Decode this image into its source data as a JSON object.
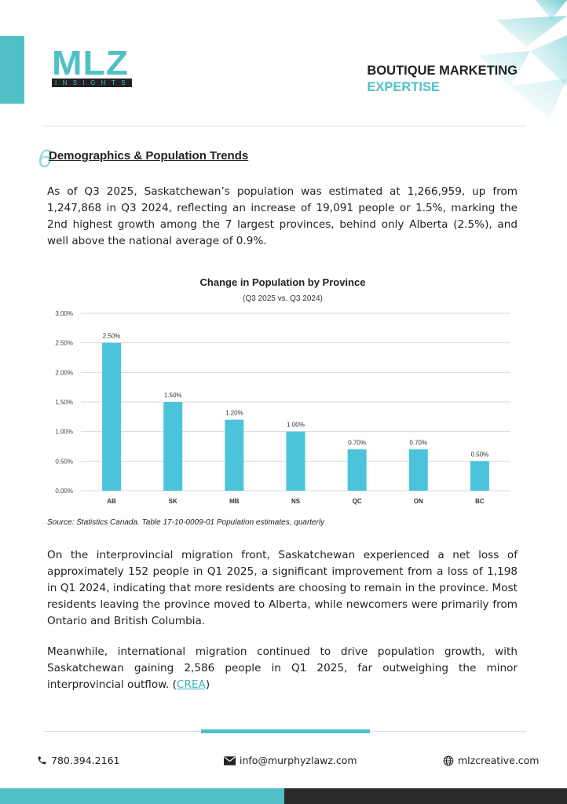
{
  "header": {
    "logo_text": "MLZ",
    "logo_subtext": "INSIGHTS",
    "tagline_line1": "BOUTIQUE MARKETING",
    "tagline_line2": "EXPERTISE"
  },
  "section": {
    "number": "6",
    "title": "Demographics & Population Trends"
  },
  "paragraphs": {
    "p1": "As of Q3 2025, Saskatchewan’s population was estimated at 1,266,959, up from 1,247,868 in Q3 2024, reflecting an increase of 19,091 people or 1.5%, marking the 2nd highest growth among the 7 largest provinces, behind only Alberta (2.5%), and well above the national average of 0.9%.",
    "p2": "On the interprovincial migration front, Saskatchewan experienced a net loss of approximately 152 people in Q1 2025, a significant improvement from a loss of 1,198 in Q1 2024, indicating that more residents are choosing to remain in the province. Most residents leaving the province moved to Alberta, while newcomers were primarily from Ontario and British Columbia.",
    "p3_text": "Meanwhile, international migration continued to drive population growth, with Saskatchewan gaining 2,586 people in Q1 2025, far outweighing the minor interprovincial outflow. (",
    "p3_link": "CREA",
    "p3_end": ")"
  },
  "chart_data": {
    "type": "bar",
    "title": "Change in Population by Province",
    "subtitle": "(Q3 2025 vs. Q3 2024)",
    "categories": [
      "AB",
      "SK",
      "MB",
      "NS",
      "QC",
      "ON",
      "BC"
    ],
    "values": [
      2.5,
      1.5,
      1.2,
      1.0,
      0.7,
      0.7,
      0.5
    ],
    "data_labels": [
      "2.50%",
      "1.50%",
      "1.20%",
      "1.00%",
      "0.70%",
      "0.70%",
      "0.50%"
    ],
    "y_ticks": [
      "0.00%",
      "0.50%",
      "1.00%",
      "1.50%",
      "2.00%",
      "2.50%",
      "3.00%"
    ],
    "ylim": [
      0,
      3
    ],
    "grid": true,
    "bar_color": "#4bc4db"
  },
  "source": "Source: Statistics Canada. Table 17-10-0009-01 Population estimates, quarterly",
  "footer": {
    "phone": "780.394.2161",
    "email": "info@murphyzlawz.com",
    "website": "mlzcreative.com"
  },
  "colors": {
    "accent": "#4fc1c6",
    "dark": "#2a2a2a"
  }
}
